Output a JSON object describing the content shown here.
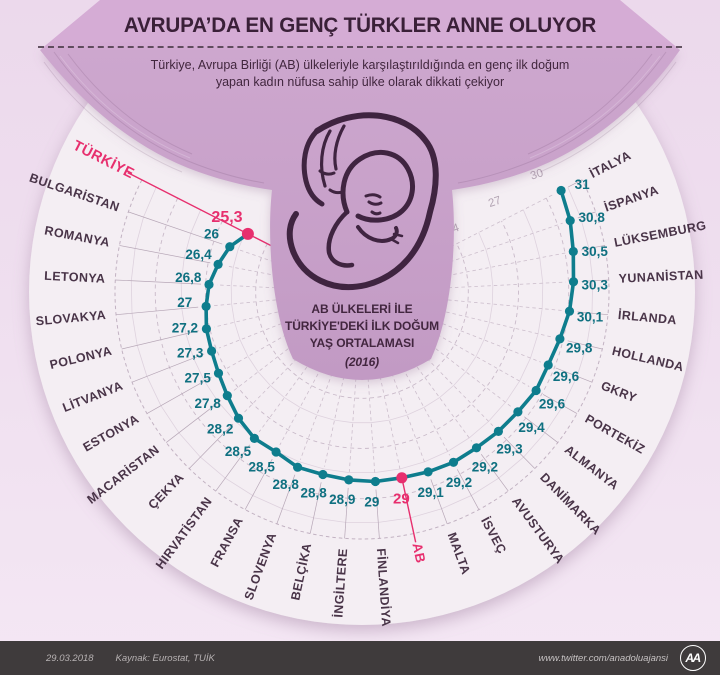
{
  "header": {
    "title": "AVRUPA’DA EN GENÇ TÜRKLER ANNE OLUYOR",
    "subtitle_line1": "Türkiye, Avrupa Birliği (AB) ülkeleriyle karşılaştırıldığında en genç ilk doğum",
    "subtitle_line2": "yapan kadın nüfusa sahip ülke olarak dikkati çekiyor"
  },
  "center_label": {
    "line1": "AB ÜLKELERİ İLE",
    "line2": "TÜRKİYE'DEKİ İLK DOĞUM",
    "line3": "YAŞ ORTALAMASI",
    "year": "(2016)"
  },
  "footer": {
    "date": "29.03.2018",
    "source": "Kaynak: Eurostat, TUİK",
    "url": "www.twitter.com/anadoluajansi",
    "logo_text": "AA"
  },
  "colors": {
    "teal": "#0e7d8d",
    "teal_text": "#0f7080",
    "pink": "#e72f6e",
    "purple_dark": "#3a2038",
    "lavender": "#c9a3ca",
    "disc": "#f4eef3",
    "label": "#493448",
    "grid": "#ccbecc",
    "tick": "#b3a4b3"
  },
  "chart_data": {
    "type": "line",
    "layout": "radial-fan",
    "title": "AB ülkeleri ile Türkiye'deki ilk doğum yaş ortalaması (2016)",
    "unit": "yaş",
    "axis_ticks": [
      24,
      27,
      30
    ],
    "axis_range": [
      24,
      31
    ],
    "grid": true,
    "points": [
      {
        "name": "TÜRKİYE",
        "value": 25.3,
        "label": "25,3",
        "highlight": true
      },
      {
        "name": "BULGARİSTAN",
        "value": 26,
        "label": "26",
        "highlight": false
      },
      {
        "name": "ROMANYA",
        "value": 26.4,
        "label": "26,4",
        "highlight": false
      },
      {
        "name": "LETONYA",
        "value": 26.8,
        "label": "26,8",
        "highlight": false
      },
      {
        "name": "SLOVAKYA",
        "value": 27,
        "label": "27",
        "highlight": false
      },
      {
        "name": "POLONYA",
        "value": 27.2,
        "label": "27,2",
        "highlight": false
      },
      {
        "name": "LİTVANYA",
        "value": 27.3,
        "label": "27,3",
        "highlight": false
      },
      {
        "name": "ESTONYA",
        "value": 27.5,
        "label": "27,5",
        "highlight": false
      },
      {
        "name": "MACARİSTAN",
        "value": 27.8,
        "label": "27,8",
        "highlight": false
      },
      {
        "name": "ÇEKYA",
        "value": 28.2,
        "label": "28,2",
        "highlight": false
      },
      {
        "name": "HIRVATİSTAN",
        "value": 28.5,
        "label": "28,5",
        "highlight": false
      },
      {
        "name": "FRANSA",
        "value": 28.5,
        "label": "28,5",
        "highlight": false
      },
      {
        "name": "SLOVENYA",
        "value": 28.8,
        "label": "28,8",
        "highlight": false
      },
      {
        "name": "BELÇİKA",
        "value": 28.8,
        "label": "28,8",
        "highlight": false
      },
      {
        "name": "İNGİLTERE",
        "value": 28.9,
        "label": "28,9",
        "highlight": false
      },
      {
        "name": "FİNLANDİYA",
        "value": 29,
        "label": "29",
        "highlight": false
      },
      {
        "name": "AB",
        "value": 29,
        "label": "29",
        "highlight": true
      },
      {
        "name": "MALTA",
        "value": 29.1,
        "label": "29,1",
        "highlight": false
      },
      {
        "name": "İSVEÇ",
        "value": 29.2,
        "label": "29,2",
        "highlight": false
      },
      {
        "name": "AVUSTURYA",
        "value": 29.2,
        "label": "29,2",
        "highlight": false
      },
      {
        "name": "DANİMARKA",
        "value": 29.3,
        "label": "29,3",
        "highlight": false
      },
      {
        "name": "ALMANYA",
        "value": 29.4,
        "label": "29,4",
        "highlight": false
      },
      {
        "name": "PORTEKİZ",
        "value": 29.6,
        "label": "29,6",
        "highlight": false
      },
      {
        "name": "GKRY",
        "value": 29.6,
        "label": "29,6",
        "highlight": false
      },
      {
        "name": "HOLLANDA",
        "value": 29.8,
        "label": "29,8",
        "highlight": false
      },
      {
        "name": "İRLANDA",
        "value": 30.1,
        "label": "30,1",
        "highlight": false
      },
      {
        "name": "YUNANİSTAN",
        "value": 30.3,
        "label": "30,3",
        "highlight": false
      },
      {
        "name": "LÜKSEMBURG",
        "value": 30.5,
        "label": "30,5",
        "highlight": false
      },
      {
        "name": "İSPANYA",
        "value": 30.8,
        "label": "30,8",
        "highlight": false
      },
      {
        "name": "İTALYA",
        "value": 31,
        "label": "31",
        "highlight": false
      }
    ]
  }
}
